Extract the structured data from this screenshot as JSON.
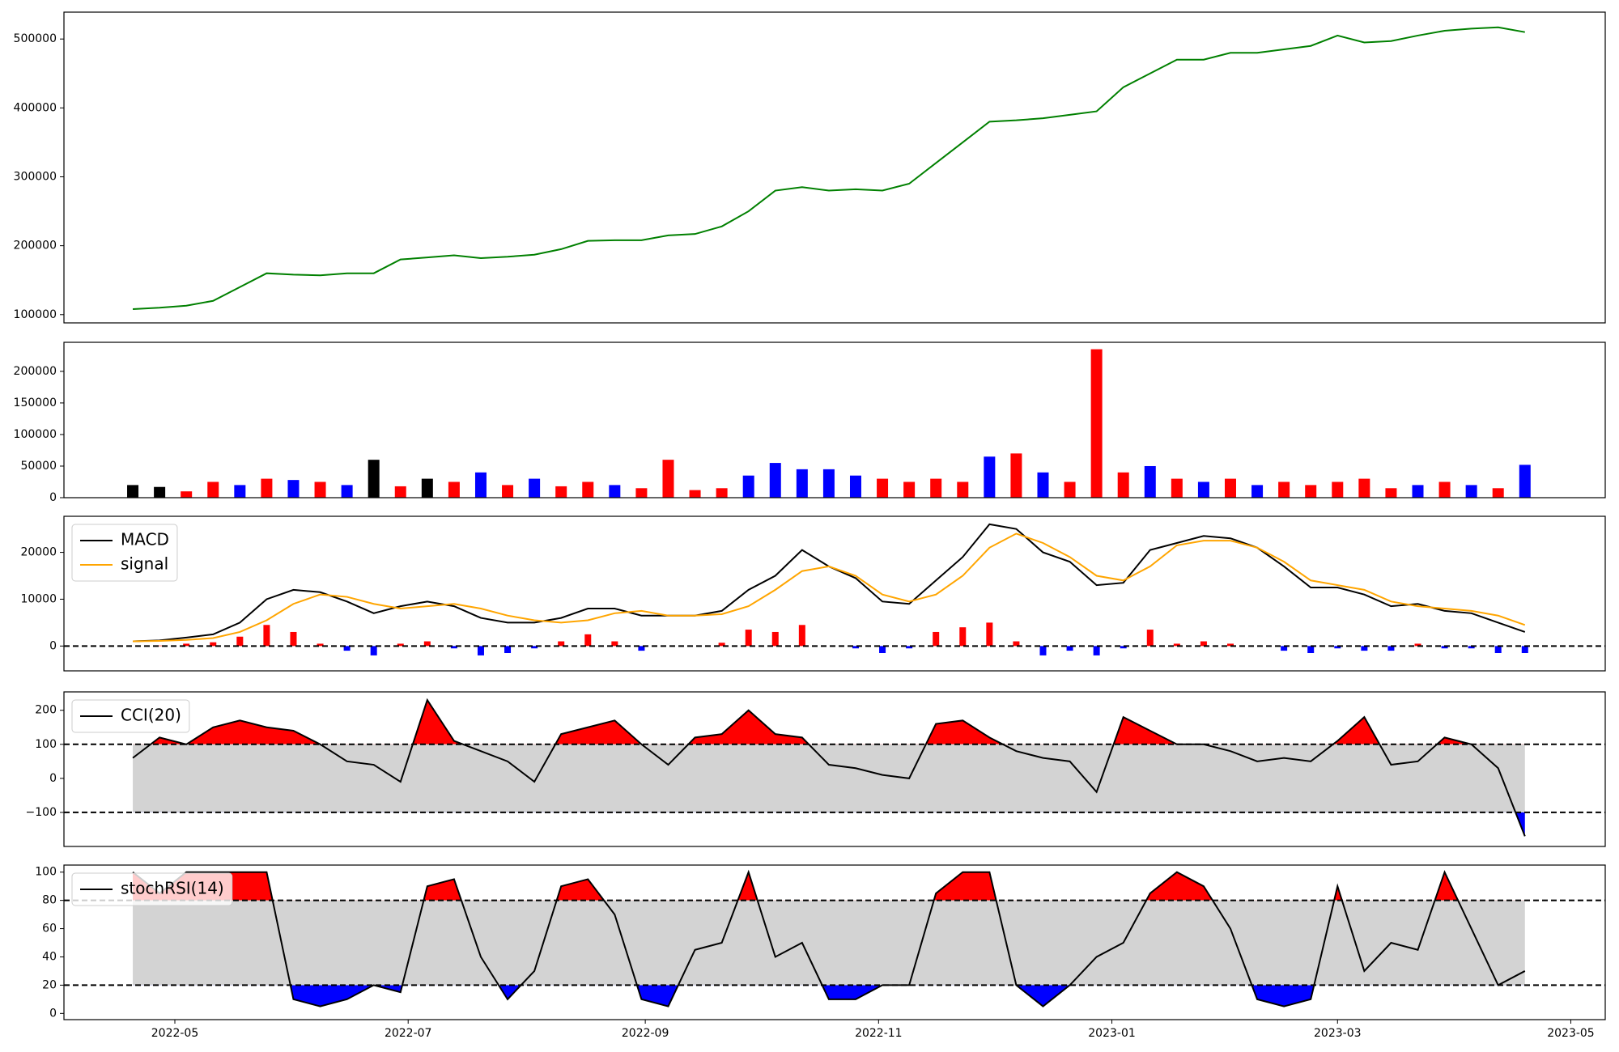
{
  "chart_data": [
    {
      "type": "line",
      "x": [
        "2022-04-20",
        "2022-04-27",
        "2022-05-04",
        "2022-05-11",
        "2022-05-18",
        "2022-05-25",
        "2022-06-01",
        "2022-06-08",
        "2022-06-15",
        "2022-06-22",
        "2022-06-29",
        "2022-07-06",
        "2022-07-13",
        "2022-07-20",
        "2022-07-27",
        "2022-08-03",
        "2022-08-10",
        "2022-08-17",
        "2022-08-24",
        "2022-08-31",
        "2022-09-07",
        "2022-09-14",
        "2022-09-21",
        "2022-09-28",
        "2022-10-05",
        "2022-10-12",
        "2022-10-19",
        "2022-10-26",
        "2022-11-02",
        "2022-11-09",
        "2022-11-16",
        "2022-11-23",
        "2022-11-30",
        "2022-12-07",
        "2022-12-14",
        "2022-12-21",
        "2022-12-28",
        "2023-01-04",
        "2023-01-11",
        "2023-01-18",
        "2023-01-25",
        "2023-02-01",
        "2023-02-08",
        "2023-02-15",
        "2023-02-22",
        "2023-03-01",
        "2023-03-08",
        "2023-03-15",
        "2023-03-22",
        "2023-03-29",
        "2023-04-05",
        "2023-04-12",
        "2023-04-19"
      ],
      "xlim": [
        "2022-04-02",
        "2023-05-10"
      ],
      "ylim": [
        88000,
        539000
      ],
      "yticks": [
        100000,
        200000,
        300000,
        400000,
        500000
      ],
      "series": [
        {
          "color": "#008000",
          "values": [
            108000,
            110000,
            113000,
            120000,
            140000,
            160000,
            158000,
            157000,
            160000,
            160000,
            180000,
            183000,
            186000,
            182000,
            184000,
            187000,
            195000,
            207000,
            208000,
            208000,
            215000,
            217000,
            228000,
            250000,
            280000,
            285000,
            280000,
            282000,
            280000,
            290000,
            320000,
            350000,
            380000,
            382000,
            385000,
            390000,
            395000,
            430000,
            450000,
            470000,
            470000,
            480000,
            480000,
            485000,
            490000,
            505000,
            495000,
            497000,
            505000,
            512000,
            515000,
            517000,
            510000
          ]
        }
      ]
    },
    {
      "type": "bar",
      "x": [
        "2022-04-20",
        "2022-04-27",
        "2022-05-04",
        "2022-05-11",
        "2022-05-18",
        "2022-05-25",
        "2022-06-01",
        "2022-06-08",
        "2022-06-15",
        "2022-06-22",
        "2022-06-29",
        "2022-07-06",
        "2022-07-13",
        "2022-07-20",
        "2022-07-27",
        "2022-08-03",
        "2022-08-10",
        "2022-08-17",
        "2022-08-24",
        "2022-08-31",
        "2022-09-07",
        "2022-09-14",
        "2022-09-21",
        "2022-09-28",
        "2022-10-05",
        "2022-10-12",
        "2022-10-19",
        "2022-10-26",
        "2022-11-02",
        "2022-11-09",
        "2022-11-16",
        "2022-11-23",
        "2022-11-30",
        "2022-12-07",
        "2022-12-14",
        "2022-12-21",
        "2022-12-28",
        "2023-01-04",
        "2023-01-11",
        "2023-01-18",
        "2023-01-25",
        "2023-02-01",
        "2023-02-08",
        "2023-02-15",
        "2023-02-22",
        "2023-03-01",
        "2023-03-08",
        "2023-03-15",
        "2023-03-22",
        "2023-03-29",
        "2023-04-05",
        "2023-04-12",
        "2023-04-19"
      ],
      "xlim": [
        "2022-04-02",
        "2023-05-10"
      ],
      "ylim": [
        0,
        246000
      ],
      "yticks": [
        0,
        50000,
        100000,
        150000,
        200000
      ],
      "values": [
        20000,
        17000,
        10000,
        25000,
        20000,
        30000,
        28000,
        25000,
        20000,
        60000,
        18000,
        30000,
        25000,
        40000,
        20000,
        30000,
        18000,
        25000,
        20000,
        15000,
        60000,
        12000,
        15000,
        35000,
        55000,
        45000,
        45000,
        35000,
        30000,
        25000,
        30000,
        25000,
        65000,
        70000,
        40000,
        25000,
        235000,
        40000,
        50000,
        30000,
        25000,
        30000,
        20000,
        25000,
        20000,
        25000,
        30000,
        15000,
        20000,
        25000,
        20000,
        15000,
        52000
      ],
      "colors": [
        "black",
        "black",
        "red",
        "red",
        "blue",
        "red",
        "blue",
        "red",
        "blue",
        "black",
        "red",
        "black",
        "red",
        "blue",
        "red",
        "blue",
        "red",
        "red",
        "blue",
        "red",
        "red",
        "red",
        "red",
        "blue",
        "blue",
        "blue",
        "blue",
        "blue",
        "red",
        "red",
        "red",
        "red",
        "blue",
        "red",
        "blue",
        "red",
        "red",
        "red",
        "blue",
        "red",
        "blue",
        "red",
        "blue",
        "red",
        "red",
        "red",
        "red",
        "red",
        "blue",
        "red",
        "blue",
        "red",
        "blue"
      ]
    },
    {
      "type": "line",
      "x": [
        "2022-04-20",
        "2022-04-27",
        "2022-05-04",
        "2022-05-11",
        "2022-05-18",
        "2022-05-25",
        "2022-06-01",
        "2022-06-08",
        "2022-06-15",
        "2022-06-22",
        "2022-06-29",
        "2022-07-06",
        "2022-07-13",
        "2022-07-20",
        "2022-07-27",
        "2022-08-03",
        "2022-08-10",
        "2022-08-17",
        "2022-08-24",
        "2022-08-31",
        "2022-09-07",
        "2022-09-14",
        "2022-09-21",
        "2022-09-28",
        "2022-10-05",
        "2022-10-12",
        "2022-10-19",
        "2022-10-26",
        "2022-11-02",
        "2022-11-09",
        "2022-11-16",
        "2022-11-23",
        "2022-11-30",
        "2022-12-07",
        "2022-12-14",
        "2022-12-21",
        "2022-12-28",
        "2023-01-04",
        "2023-01-11",
        "2023-01-18",
        "2023-01-25",
        "2023-02-01",
        "2023-02-08",
        "2023-02-15",
        "2023-02-22",
        "2023-03-01",
        "2023-03-08",
        "2023-03-15",
        "2023-03-22",
        "2023-03-29",
        "2023-04-05",
        "2023-04-12",
        "2023-04-19"
      ],
      "xlim": [
        "2022-04-02",
        "2023-05-10"
      ],
      "ylim": [
        -5300,
        27700
      ],
      "yticks": [
        0,
        10000,
        20000
      ],
      "legend": "upper left",
      "reference_lines": [
        0
      ],
      "series": [
        {
          "name": "MACD",
          "color": "black",
          "values": [
            1000,
            1200,
            1800,
            2500,
            5000,
            10000,
            12000,
            11500,
            9500,
            7000,
            8500,
            9500,
            8500,
            6000,
            5000,
            5000,
            6000,
            8000,
            8000,
            6500,
            6500,
            6500,
            7500,
            12000,
            15000,
            20500,
            17000,
            14500,
            9500,
            9000,
            14000,
            19000,
            26000,
            25000,
            20000,
            18000,
            13000,
            13500,
            20500,
            22000,
            23500,
            23000,
            21000,
            17000,
            12500,
            12500,
            11000,
            8500,
            9000,
            7500,
            7000,
            5000,
            3000
          ]
        },
        {
          "name": "signal",
          "color": "orange",
          "values": [
            1000,
            1100,
            1300,
            1700,
            3000,
            5500,
            9000,
            11000,
            10500,
            9000,
            8000,
            8500,
            9000,
            8000,
            6500,
            5500,
            5000,
            5500,
            7000,
            7500,
            6500,
            6500,
            6800,
            8500,
            12000,
            16000,
            17000,
            15000,
            11000,
            9500,
            11000,
            15000,
            21000,
            24000,
            22000,
            19000,
            15000,
            14000,
            17000,
            21500,
            22500,
            22500,
            21000,
            18000,
            14000,
            13000,
            12000,
            9500,
            8500,
            8000,
            7500,
            6500,
            4500
          ]
        }
      ],
      "bars": {
        "positive_color": "red",
        "negative_color": "blue",
        "values": [
          0,
          100,
          500,
          800,
          2000,
          4500,
          3000,
          500,
          -1000,
          -2000,
          500,
          1000,
          -500,
          -2000,
          -1500,
          -500,
          1000,
          2500,
          1000,
          -1000,
          0,
          0,
          700,
          3500,
          3000,
          4500,
          0,
          -500,
          -1500,
          -500,
          3000,
          4000,
          5000,
          1000,
          -2000,
          -1000,
          -2000,
          -500,
          3500,
          500,
          1000,
          500,
          0,
          -1000,
          -1500,
          -500,
          -1000,
          -1000,
          500,
          -500,
          -500,
          -1500,
          -1500
        ]
      }
    },
    {
      "type": "line",
      "x": [
        "2022-04-20",
        "2022-04-27",
        "2022-05-04",
        "2022-05-11",
        "2022-05-18",
        "2022-05-25",
        "2022-06-01",
        "2022-06-08",
        "2022-06-15",
        "2022-06-22",
        "2022-06-29",
        "2022-07-06",
        "2022-07-13",
        "2022-07-20",
        "2022-07-27",
        "2022-08-03",
        "2022-08-10",
        "2022-08-17",
        "2022-08-24",
        "2022-08-31",
        "2022-09-07",
        "2022-09-14",
        "2022-09-21",
        "2022-09-28",
        "2022-10-05",
        "2022-10-12",
        "2022-10-19",
        "2022-10-26",
        "2022-11-02",
        "2022-11-09",
        "2022-11-16",
        "2022-11-23",
        "2022-11-30",
        "2022-12-07",
        "2022-12-14",
        "2022-12-21",
        "2022-12-28",
        "2023-01-04",
        "2023-01-11",
        "2023-01-18",
        "2023-01-25",
        "2023-02-01",
        "2023-02-08",
        "2023-02-15",
        "2023-02-22",
        "2023-03-01",
        "2023-03-08",
        "2023-03-15",
        "2023-03-22",
        "2023-03-29",
        "2023-04-05",
        "2023-04-12",
        "2023-04-19"
      ],
      "xlim": [
        "2022-04-02",
        "2023-05-10"
      ],
      "ylim": [
        -200,
        254
      ],
      "yticks": [
        {
          "value": -100,
          "label": "−100"
        },
        0,
        100,
        200
      ],
      "legend": "upper left",
      "thresholds": [
        -100,
        100
      ],
      "band_color": "#d3d3d3",
      "above_color": "red",
      "below_color": "blue",
      "series": [
        {
          "name": "CCI(20)",
          "color": "black",
          "values": [
            60,
            120,
            100,
            150,
            170,
            150,
            140,
            100,
            50,
            40,
            -10,
            230,
            110,
            80,
            50,
            -10,
            130,
            150,
            170,
            100,
            40,
            120,
            130,
            200,
            130,
            120,
            40,
            30,
            10,
            0,
            160,
            170,
            120,
            80,
            60,
            50,
            -40,
            180,
            140,
            100,
            100,
            80,
            50,
            60,
            50,
            110,
            180,
            40,
            50,
            120,
            100,
            30,
            -170
          ]
        }
      ]
    },
    {
      "type": "line",
      "x": [
        "2022-04-20",
        "2022-04-27",
        "2022-05-04",
        "2022-05-11",
        "2022-05-18",
        "2022-05-25",
        "2022-06-01",
        "2022-06-08",
        "2022-06-15",
        "2022-06-22",
        "2022-06-29",
        "2022-07-06",
        "2022-07-13",
        "2022-07-20",
        "2022-07-27",
        "2022-08-03",
        "2022-08-10",
        "2022-08-17",
        "2022-08-24",
        "2022-08-31",
        "2022-09-07",
        "2022-09-14",
        "2022-09-21",
        "2022-09-28",
        "2022-10-05",
        "2022-10-12",
        "2022-10-19",
        "2022-10-26",
        "2022-11-02",
        "2022-11-09",
        "2022-11-16",
        "2022-11-23",
        "2022-11-30",
        "2022-12-07",
        "2022-12-14",
        "2022-12-21",
        "2022-12-28",
        "2023-01-04",
        "2023-01-11",
        "2023-01-18",
        "2023-01-25",
        "2023-02-01",
        "2023-02-08",
        "2023-02-15",
        "2023-02-22",
        "2023-03-01",
        "2023-03-08",
        "2023-03-15",
        "2023-03-22",
        "2023-03-29",
        "2023-04-05",
        "2023-04-12",
        "2023-04-19"
      ],
      "xlim": [
        "2022-04-02",
        "2023-05-10"
      ],
      "xticks": [
        {
          "value": "2022-05-01",
          "label": "2022-05"
        },
        {
          "value": "2022-07-01",
          "label": "2022-07"
        },
        {
          "value": "2022-09-01",
          "label": "2022-09"
        },
        {
          "value": "2022-11-01",
          "label": "2022-11"
        },
        {
          "value": "2023-01-01",
          "label": "2023-01"
        },
        {
          "value": "2023-03-01",
          "label": "2023-03"
        },
        {
          "value": "2023-05-01",
          "label": "2023-05"
        }
      ],
      "ylim": [
        -4.4,
        105
      ],
      "yticks": [
        0,
        20,
        40,
        60,
        80,
        100
      ],
      "legend": "upper left",
      "thresholds": [
        20,
        80
      ],
      "band_color": "#d3d3d3",
      "above_color": "red",
      "below_color": "blue",
      "series": [
        {
          "name": "stochRSI(14)",
          "color": "black",
          "values": [
            100,
            85,
            100,
            100,
            100,
            100,
            10,
            5,
            10,
            20,
            15,
            90,
            95,
            40,
            10,
            30,
            90,
            95,
            70,
            10,
            5,
            45,
            50,
            100,
            40,
            50,
            10,
            10,
            20,
            20,
            85,
            100,
            100,
            20,
            5,
            20,
            40,
            50,
            85,
            100,
            90,
            60,
            10,
            5,
            10,
            90,
            30,
            50,
            45,
            100,
            60,
            20,
            30
          ]
        }
      ]
    }
  ]
}
